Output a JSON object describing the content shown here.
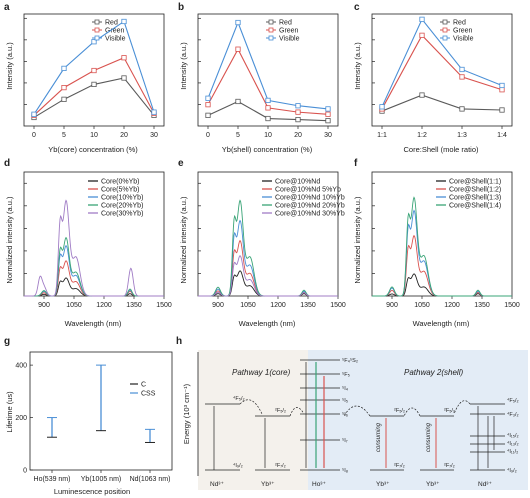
{
  "colors": {
    "red": "#5a5a5a",
    "green": "#d9534f",
    "visible": "#4a8fd6"
  },
  "panels": {
    "a": {
      "label": "a",
      "xlabel": "Yb(core) concentration (%)",
      "ylabel": "Intensity (a.u.)"
    },
    "b": {
      "label": "b",
      "xlabel": "Yb(shell) concentration (%)",
      "ylabel": "Intensity (a.u.)"
    },
    "c": {
      "label": "c",
      "xlabel": "Core:Shell (mole ratio)",
      "ylabel": "Intensity (a.u.)"
    },
    "d": {
      "label": "d",
      "xlabel": "Wavelength (nm)",
      "ylabel": "Normalized intensity (a.u.)"
    },
    "e": {
      "label": "e",
      "xlabel": "Wavelength (nm)",
      "ylabel": "Normalized intensity (a.u.)"
    },
    "f": {
      "label": "f",
      "xlabel": "Wavelength (nm)",
      "ylabel": "Normalized intensity (a.u.)"
    },
    "g": {
      "label": "g",
      "xlabel": "Luminescence position",
      "ylabel": "Lifetime (us)"
    },
    "h": {
      "label": "h",
      "ylabel": "Energy (10³ cm⁻¹)"
    }
  },
  "chart_data": [
    {
      "id": "a",
      "type": "line",
      "categories": [
        "0",
        "5",
        "10",
        "20",
        "30"
      ],
      "series": [
        {
          "name": "Red",
          "values": [
            0.8,
            2.5,
            3.9,
            4.5,
            1.0
          ]
        },
        {
          "name": "Green",
          "values": [
            1.0,
            3.6,
            5.2,
            6.4,
            1.2
          ]
        },
        {
          "name": "Visible",
          "values": [
            1.1,
            5.4,
            7.9,
            9.8,
            1.3
          ]
        }
      ],
      "ylim": [
        0,
        10.5
      ]
    },
    {
      "id": "b",
      "type": "line",
      "categories": [
        "0",
        "5",
        "10",
        "20",
        "30"
      ],
      "series": [
        {
          "name": "Red",
          "values": [
            1.0,
            2.3,
            0.7,
            0.6,
            0.5
          ]
        },
        {
          "name": "Green",
          "values": [
            2.0,
            7.2,
            1.7,
            1.3,
            1.1
          ]
        },
        {
          "name": "Visible",
          "values": [
            2.6,
            9.7,
            2.4,
            1.9,
            1.6
          ]
        }
      ],
      "ylim": [
        0,
        10.5
      ]
    },
    {
      "id": "c",
      "type": "line",
      "categories": [
        "1:1",
        "1:2",
        "1:3",
        "1:4"
      ],
      "series": [
        {
          "name": "Red",
          "values": [
            1.4,
            2.9,
            1.6,
            1.5
          ]
        },
        {
          "name": "Green",
          "values": [
            1.6,
            8.5,
            4.6,
            3.4
          ]
        },
        {
          "name": "Visible",
          "values": [
            1.8,
            10.0,
            5.3,
            3.8
          ]
        }
      ],
      "ylim": [
        0,
        10.5
      ]
    },
    {
      "id": "d",
      "type": "line",
      "xlim": [
        800,
        1500
      ],
      "xticks": [
        900,
        1050,
        1200,
        1350,
        1500
      ],
      "series": [
        {
          "name": "Core(0%Yb)",
          "color": "#222222",
          "peak": 0.18,
          "extra": [
            [
              1330,
              0.02
            ]
          ]
        },
        {
          "name": "Core(5%Yb)",
          "color": "#d9534f",
          "peak": 0.35,
          "extra": [
            [
              1330,
              0.04
            ]
          ]
        },
        {
          "name": "Core(10%Yb)",
          "color": "#4a8fd6",
          "peak": 0.5,
          "extra": [
            [
              1330,
              0.05
            ]
          ]
        },
        {
          "name": "Core(20%Yb)",
          "color": "#3aa477",
          "peak": 0.58,
          "extra": [
            [
              1330,
              0.06
            ]
          ]
        },
        {
          "name": "Core(30%Yb)",
          "color": "#a07cc5",
          "peak": 0.95,
          "extra": [
            [
              880,
              0.15
            ],
            [
              1330,
              0.15
            ],
            [
              1340,
              0.12
            ]
          ]
        }
      ]
    },
    {
      "id": "e",
      "type": "line",
      "xlim": [
        800,
        1500
      ],
      "xticks": [
        900,
        1050,
        1200,
        1350,
        1500
      ],
      "series": [
        {
          "name": "Core@10%Nd",
          "color": "#222222",
          "peak": 0.25,
          "extra": [
            [
              1330,
              0.02
            ]
          ]
        },
        {
          "name": "Core@10%Nd 5%Yb",
          "color": "#d9534f",
          "peak": 0.55,
          "extra": [
            [
              1330,
              0.03
            ]
          ]
        },
        {
          "name": "Core@10%Nd 10%Yb",
          "color": "#4a8fd6",
          "peak": 0.75,
          "extra": [
            [
              1330,
              0.04
            ]
          ]
        },
        {
          "name": "Core@10%Nd 20%Yb",
          "color": "#3aa477",
          "peak": 0.95,
          "extra": [
            [
              1330,
              0.05
            ]
          ]
        },
        {
          "name": "Core@10%Nd 30%Yb",
          "color": "#a07cc5",
          "peak": 0.4,
          "extra": [
            [
              1330,
              0.03
            ]
          ]
        }
      ]
    },
    {
      "id": "f",
      "type": "line",
      "xlim": [
        800,
        1500
      ],
      "xticks": [
        900,
        1050,
        1200,
        1350,
        1500
      ],
      "series": [
        {
          "name": "Core@Shell(1:1)",
          "color": "#222222",
          "peak": 0.22,
          "extra": [
            [
              1330,
              0.02
            ]
          ]
        },
        {
          "name": "Core@Shell(1:2)",
          "color": "#d9534f",
          "peak": 0.6,
          "extra": [
            [
              1330,
              0.03
            ]
          ]
        },
        {
          "name": "Core@Shell(1:3)",
          "color": "#4a8fd6",
          "peak": 0.85,
          "extra": [
            [
              1330,
              0.04
            ]
          ]
        },
        {
          "name": "Core@Shell(1:4)",
          "color": "#3aa477",
          "peak": 0.98,
          "extra": [
            [
              1330,
              0.05
            ]
          ]
        }
      ]
    },
    {
      "id": "g",
      "type": "errorbar",
      "categories": [
        "Ho(539 nm)",
        "Yb(1005 nm)",
        "Nd(1063 nm)"
      ],
      "yticks": [
        0,
        200,
        400
      ],
      "ylim": [
        0,
        450
      ],
      "series": [
        {
          "name": "C",
          "color": "#222222",
          "values": [
            125,
            150,
            105
          ]
        },
        {
          "name": "CSS",
          "color": "#4a8fd6",
          "values": [
            200,
            400,
            155
          ]
        }
      ]
    }
  ],
  "diagram": {
    "pathway1": "Pathway 1(core)",
    "pathway2": "Pathway 2(shell)",
    "consuming": "consuming",
    "ions": [
      "Nd³⁺",
      "Yb³⁺",
      "Ho³⁺",
      "Yb³⁺",
      "Yb³⁺",
      "Nd³⁺"
    ],
    "levels": {
      "nd_f52": "⁴F₅/₂",
      "nd_i92": "⁴I₉/₂",
      "yb_f52": "²F₅/₂",
      "yb_f72": "²F₇/₂",
      "ho_f4s2": "⁵F₄⁵S₂",
      "ho_f5": "⁵F₅",
      "ho_i4": "⁵I₄",
      "ho_i5": "⁵I₅",
      "ho_i6": "⁵I₆",
      "ho_i7": "⁵I₇",
      "ho_i8": "⁵I₈",
      "nd_f32": "⁴F₃/₂",
      "nd_i152": "⁴I₁₅/₂",
      "nd_i132": "⁴I₁₃/₂",
      "nd_i112": "⁴I₁₁/₂"
    }
  }
}
